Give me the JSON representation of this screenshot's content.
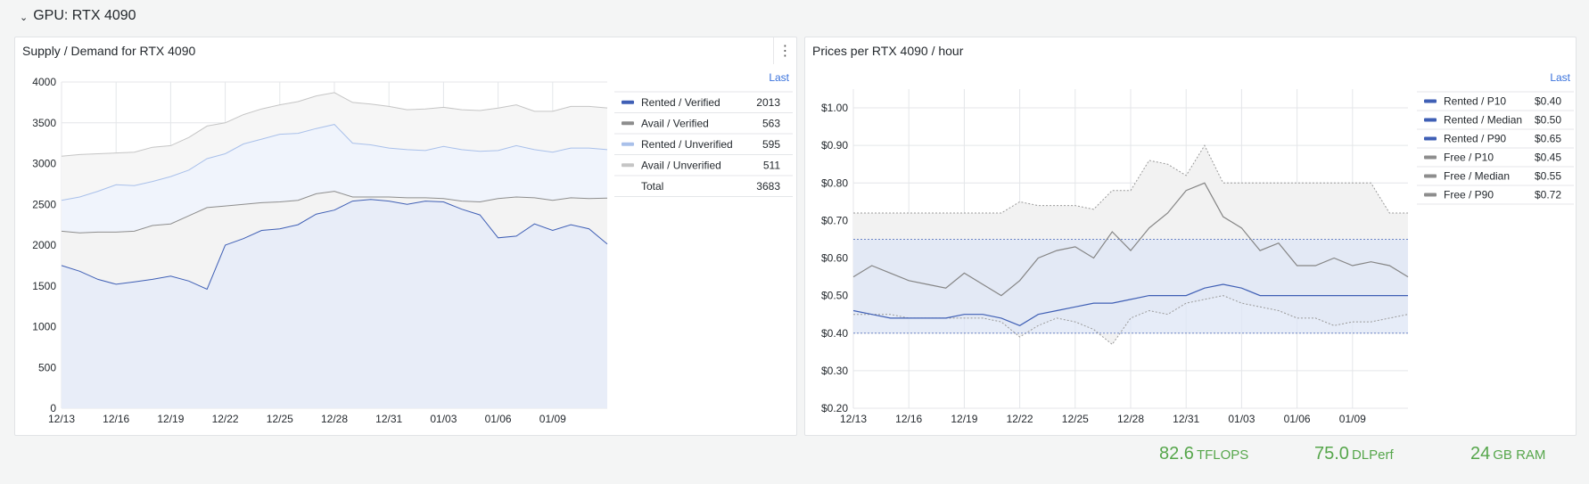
{
  "row": {
    "title": "GPU: RTX 4090"
  },
  "colors": {
    "rented_verified": "#3f5fb5",
    "avail_verified": "#8d8d8d",
    "rented_unverified": "#a9c0ea",
    "avail_unverified": "#c5c5c5",
    "accent": "#3871dc",
    "stat_green": "#56a64b"
  },
  "panels": [
    {
      "title": "Supply / Demand for RTX 4090",
      "legend_header": "Last",
      "legend": [
        {
          "name": "Rented / Verified",
          "value": "2013",
          "color": "#3f5fb5"
        },
        {
          "name": "Avail / Verified",
          "value": "563",
          "color": "#8d8d8d"
        },
        {
          "name": "Rented / Unverified",
          "value": "595",
          "color": "#a9c0ea"
        },
        {
          "name": "Avail / Unverified",
          "value": "511",
          "color": "#c5c5c5"
        },
        {
          "name": "Total",
          "value": "3683",
          "color": ""
        }
      ]
    },
    {
      "title": "Prices per RTX 4090 / hour",
      "legend_header": "Last",
      "legend": [
        {
          "name": "Rented / P10",
          "value": "$0.40",
          "color": "#3f5fb5"
        },
        {
          "name": "Rented / Median",
          "value": "$0.50",
          "color": "#3f5fb5"
        },
        {
          "name": "Rented / P90",
          "value": "$0.65",
          "color": "#3f5fb5"
        },
        {
          "name": "Free / P10",
          "value": "$0.45",
          "color": "#8d8d8d"
        },
        {
          "name": "Free / Median",
          "value": "$0.55",
          "color": "#8d8d8d"
        },
        {
          "name": "Free / P90",
          "value": "$0.72",
          "color": "#8d8d8d"
        }
      ]
    }
  ],
  "stats": [
    {
      "value": "82.6",
      "unit": "TFLOPS"
    },
    {
      "value": "75.0",
      "unit": "DLPerf"
    },
    {
      "value": "24",
      "unit": "GB RAM"
    }
  ],
  "chart_data": [
    {
      "type": "area",
      "stacked": true,
      "title": "Supply / Demand for RTX 4090",
      "xlabel": "",
      "ylabel": "",
      "x_ticks": [
        "12/13",
        "12/16",
        "12/19",
        "12/22",
        "12/25",
        "12/28",
        "12/31",
        "01/03",
        "01/06",
        "01/09"
      ],
      "y_ticks": [
        "0",
        "500",
        "1000",
        "1500",
        "2000",
        "2500",
        "3000",
        "3500",
        "4000"
      ],
      "xlim": [
        0,
        30
      ],
      "ylim": [
        0,
        4000
      ],
      "grid": true,
      "legend_position": "right",
      "x": [
        0,
        1,
        2,
        3,
        4,
        5,
        6,
        7,
        8,
        9,
        10,
        11,
        12,
        13,
        14,
        15,
        16,
        17,
        18,
        19,
        20,
        21,
        22,
        23,
        24,
        25,
        26,
        27,
        28,
        29,
        30
      ],
      "series": [
        {
          "name": "Rented / Verified",
          "values": [
            1750,
            1680,
            1580,
            1520,
            1550,
            1580,
            1620,
            1560,
            1460,
            2000,
            2080,
            2180,
            2200,
            2250,
            2380,
            2430,
            2540,
            2560,
            2540,
            2500,
            2540,
            2530,
            2440,
            2370,
            2090,
            2110,
            2260,
            2180,
            2250,
            2200,
            2013
          ]
        },
        {
          "name": "Avail / Verified",
          "values": [
            420,
            470,
            580,
            640,
            620,
            660,
            640,
            800,
            1000,
            480,
            420,
            340,
            330,
            300,
            250,
            230,
            50,
            30,
            50,
            80,
            40,
            40,
            100,
            160,
            480,
            480,
            320,
            370,
            330,
            370,
            563
          ]
        },
        {
          "name": "Rented / Unverified",
          "values": [
            380,
            440,
            500,
            580,
            560,
            540,
            580,
            560,
            600,
            640,
            740,
            780,
            830,
            820,
            800,
            820,
            660,
            640,
            600,
            590,
            580,
            640,
            630,
            620,
            590,
            630,
            590,
            590,
            610,
            620,
            595
          ]
        },
        {
          "name": "Avail / Unverified",
          "values": [
            540,
            520,
            460,
            390,
            410,
            420,
            380,
            400,
            400,
            380,
            360,
            370,
            360,
            390,
            400,
            390,
            500,
            500,
            510,
            490,
            510,
            480,
            490,
            500,
            520,
            500,
            470,
            500,
            510,
            510,
            511
          ]
        }
      ]
    },
    {
      "type": "line",
      "title": "Prices per RTX 4090 / hour",
      "xlabel": "",
      "ylabel": "",
      "x_ticks": [
        "12/13",
        "12/16",
        "12/19",
        "12/22",
        "12/25",
        "12/28",
        "12/31",
        "01/03",
        "01/06",
        "01/09"
      ],
      "y_ticks": [
        "$0.20",
        "$0.30",
        "$0.40",
        "$0.50",
        "$0.60",
        "$0.70",
        "$0.80",
        "$0.90",
        "$1.00"
      ],
      "xlim": [
        0,
        30
      ],
      "ylim": [
        0.2,
        1.05
      ],
      "grid": true,
      "legend_position": "right",
      "x": [
        0,
        1,
        2,
        3,
        4,
        5,
        6,
        7,
        8,
        9,
        10,
        11,
        12,
        13,
        14,
        15,
        16,
        17,
        18,
        19,
        20,
        21,
        22,
        23,
        24,
        25,
        26,
        27,
        28,
        29,
        30
      ],
      "series": [
        {
          "name": "Rented / P10",
          "values": [
            0.4,
            0.4,
            0.4,
            0.4,
            0.4,
            0.4,
            0.4,
            0.4,
            0.4,
            0.4,
            0.4,
            0.4,
            0.4,
            0.4,
            0.4,
            0.4,
            0.4,
            0.4,
            0.4,
            0.4,
            0.4,
            0.4,
            0.4,
            0.4,
            0.4,
            0.4,
            0.4,
            0.4,
            0.4,
            0.4,
            0.4
          ]
        },
        {
          "name": "Rented / Median",
          "values": [
            0.46,
            0.45,
            0.44,
            0.44,
            0.44,
            0.44,
            0.45,
            0.45,
            0.44,
            0.42,
            0.45,
            0.46,
            0.47,
            0.48,
            0.48,
            0.49,
            0.5,
            0.5,
            0.5,
            0.52,
            0.53,
            0.52,
            0.5,
            0.5,
            0.5,
            0.5,
            0.5,
            0.5,
            0.5,
            0.5,
            0.5
          ]
        },
        {
          "name": "Rented / P90",
          "values": [
            0.65,
            0.65,
            0.65,
            0.65,
            0.65,
            0.65,
            0.65,
            0.65,
            0.65,
            0.65,
            0.65,
            0.65,
            0.65,
            0.65,
            0.65,
            0.65,
            0.65,
            0.65,
            0.65,
            0.65,
            0.65,
            0.65,
            0.65,
            0.65,
            0.65,
            0.65,
            0.65,
            0.65,
            0.65,
            0.65,
            0.65
          ]
        },
        {
          "name": "Free / P10",
          "values": [
            0.45,
            0.45,
            0.45,
            0.44,
            0.44,
            0.44,
            0.44,
            0.44,
            0.43,
            0.39,
            0.42,
            0.44,
            0.43,
            0.41,
            0.37,
            0.44,
            0.46,
            0.45,
            0.48,
            0.49,
            0.5,
            0.48,
            0.47,
            0.46,
            0.44,
            0.44,
            0.42,
            0.43,
            0.43,
            0.44,
            0.45
          ]
        },
        {
          "name": "Free / Median",
          "values": [
            0.55,
            0.58,
            0.56,
            0.54,
            0.53,
            0.52,
            0.56,
            0.53,
            0.5,
            0.54,
            0.6,
            0.62,
            0.63,
            0.6,
            0.67,
            0.62,
            0.68,
            0.72,
            0.78,
            0.8,
            0.71,
            0.68,
            0.62,
            0.64,
            0.58,
            0.58,
            0.6,
            0.58,
            0.59,
            0.58,
            0.55
          ]
        },
        {
          "name": "Free / P90",
          "values": [
            0.72,
            0.72,
            0.72,
            0.72,
            0.72,
            0.72,
            0.72,
            0.72,
            0.72,
            0.75,
            0.74,
            0.74,
            0.74,
            0.73,
            0.78,
            0.78,
            0.86,
            0.85,
            0.82,
            0.9,
            0.8,
            0.8,
            0.8,
            0.8,
            0.8,
            0.8,
            0.8,
            0.8,
            0.8,
            0.72,
            0.72
          ]
        }
      ]
    }
  ]
}
